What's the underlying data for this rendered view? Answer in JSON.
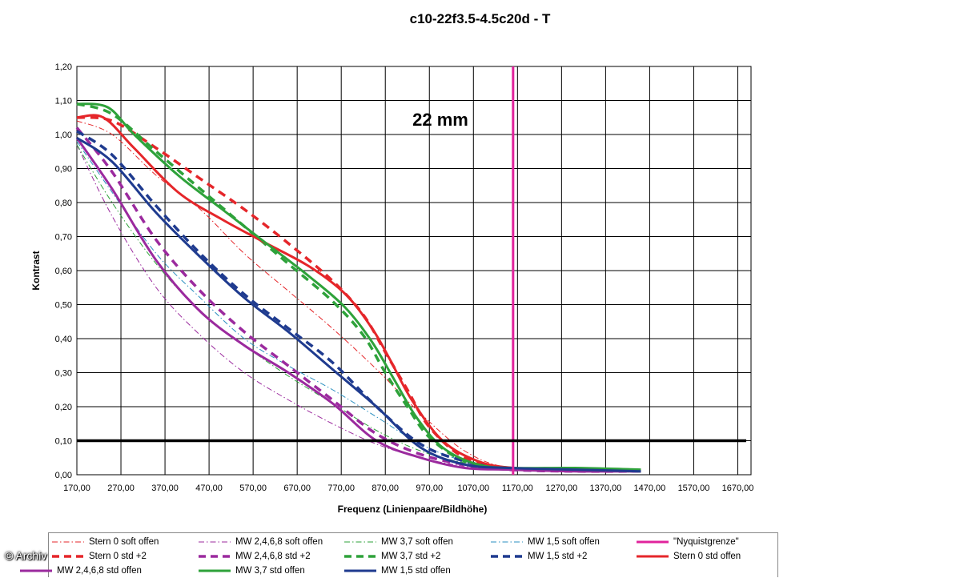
{
  "chart_data": {
    "type": "line",
    "title": "c10-22f3.5-4.5c20d - T",
    "annotation": "22 mm",
    "xlabel": "Frequenz (Linienpaare/Bildhöhe)",
    "ylabel": "Kontrast",
    "xlim": [
      170,
      1700
    ],
    "ylim": [
      0,
      1.2
    ],
    "x_ticks": [
      "170,00",
      "270,00",
      "370,00",
      "470,00",
      "570,00",
      "670,00",
      "770,00",
      "870,00",
      "970,00",
      "1070,00",
      "1170,00",
      "1270,00",
      "1370,00",
      "1470,00",
      "1570,00",
      "1670,00"
    ],
    "y_ticks": [
      "0,00",
      "0,10",
      "0,20",
      "0,30",
      "0,40",
      "0,50",
      "0,60",
      "0,70",
      "0,80",
      "0,90",
      "1,00",
      "1,10",
      "1,20"
    ],
    "grid": true,
    "reference_lines": [
      {
        "orientation": "horizontal",
        "value": 0.1,
        "color": "#000000"
      },
      {
        "orientation": "vertical",
        "value": 1160,
        "color": "#e0249c",
        "series": "\"Nyquistgrenze\""
      }
    ],
    "series": [
      {
        "name": "Stern 0 soft offen",
        "color": "#e5262a",
        "style": "dashdot",
        "width": 1,
        "x": [
          170,
          250,
          350,
          450,
          550,
          650,
          750,
          850,
          950,
          1050,
          1150,
          1300,
          1450
        ],
        "y": [
          1.04,
          1.0,
          0.88,
          0.78,
          0.65,
          0.54,
          0.43,
          0.31,
          0.18,
          0.07,
          0.02,
          0.01,
          0.01
        ]
      },
      {
        "name": "MW 2,4,6,8 soft offen",
        "color": "#9b2a9e",
        "style": "dashdot",
        "width": 1,
        "x": [
          170,
          250,
          350,
          450,
          550,
          650,
          750,
          850,
          950,
          1050,
          1150,
          1300,
          1450
        ],
        "y": [
          0.97,
          0.76,
          0.55,
          0.41,
          0.3,
          0.22,
          0.15,
          0.09,
          0.05,
          0.025,
          0.015,
          0.01,
          0.01
        ]
      },
      {
        "name": "MW 3,7 soft offen",
        "color": "#2ea23a",
        "style": "dashdot",
        "width": 1,
        "x": [
          170,
          250,
          350,
          450,
          550,
          650,
          750,
          850,
          950,
          1050,
          1150,
          1300,
          1450
        ],
        "y": [
          0.97,
          0.8,
          0.62,
          0.48,
          0.38,
          0.29,
          0.21,
          0.13,
          0.07,
          0.035,
          0.02,
          0.01,
          0.01
        ]
      },
      {
        "name": "MW 1,5 soft offen",
        "color": "#2a8fc0",
        "style": "dashdot",
        "width": 1,
        "x": [
          170,
          250,
          350,
          450,
          550,
          650,
          750,
          850,
          950,
          1050,
          1150,
          1300,
          1450
        ],
        "y": [
          0.98,
          0.83,
          0.65,
          0.52,
          0.4,
          0.32,
          0.25,
          0.17,
          0.09,
          0.04,
          0.02,
          0.01,
          0.01
        ]
      },
      {
        "name": "\"Nyquistgrenze\"",
        "color": "#e0249c",
        "style": "solid",
        "width": 3,
        "x": [
          1160,
          1160
        ],
        "y": [
          0,
          1.2
        ]
      },
      {
        "name": "Stern 0 std +2",
        "color": "#e5262a",
        "style": "dash",
        "width": 3.5,
        "x": [
          170,
          250,
          350,
          450,
          550,
          650,
          750,
          820,
          870,
          920,
          970,
          1050,
          1150,
          1300,
          1450
        ],
        "y": [
          1.05,
          1.04,
          0.96,
          0.87,
          0.78,
          0.68,
          0.57,
          0.47,
          0.36,
          0.25,
          0.14,
          0.05,
          0.02,
          0.015,
          0.01
        ]
      },
      {
        "name": "MW 2,4,6,8 std +2",
        "color": "#9b2a9e",
        "style": "dash",
        "width": 3.5,
        "x": [
          170,
          250,
          350,
          450,
          550,
          650,
          750,
          850,
          950,
          1050,
          1150,
          1300,
          1450
        ],
        "y": [
          1.02,
          0.89,
          0.69,
          0.54,
          0.42,
          0.32,
          0.22,
          0.12,
          0.06,
          0.03,
          0.015,
          0.01,
          0.01
        ]
      },
      {
        "name": "MW 3,7 std +2",
        "color": "#2ea23a",
        "style": "dash",
        "width": 3.5,
        "x": [
          170,
          250,
          350,
          450,
          550,
          650,
          750,
          820,
          870,
          920,
          970,
          1050,
          1150,
          1300,
          1450
        ],
        "y": [
          1.09,
          1.06,
          0.95,
          0.84,
          0.73,
          0.62,
          0.51,
          0.41,
          0.3,
          0.2,
          0.11,
          0.04,
          0.02,
          0.015,
          0.01
        ]
      },
      {
        "name": "MW 1,5 std +2",
        "color": "#1f3b8f",
        "style": "dash",
        "width": 3.5,
        "x": [
          170,
          250,
          350,
          450,
          550,
          650,
          750,
          850,
          950,
          1050,
          1150,
          1300,
          1450
        ],
        "y": [
          1.01,
          0.94,
          0.79,
          0.65,
          0.53,
          0.43,
          0.33,
          0.2,
          0.09,
          0.04,
          0.02,
          0.015,
          0.01
        ]
      },
      {
        "name": "Stern 0 std offen",
        "color": "#e5262a",
        "style": "solid",
        "width": 3,
        "x": [
          170,
          230,
          300,
          400,
          500,
          600,
          700,
          780,
          840,
          880,
          930,
          1000,
          1080,
          1160,
          1300,
          1450
        ],
        "y": [
          1.05,
          1.05,
          0.96,
          0.83,
          0.75,
          0.68,
          0.61,
          0.53,
          0.43,
          0.34,
          0.22,
          0.1,
          0.04,
          0.02,
          0.015,
          0.012
        ]
      },
      {
        "name": "MW 2,4,6,8 std offen",
        "color": "#9b2a9e",
        "style": "solid",
        "width": 3,
        "x": [
          170,
          250,
          350,
          450,
          550,
          650,
          750,
          850,
          950,
          1050,
          1150,
          1300,
          1450
        ],
        "y": [
          0.99,
          0.84,
          0.63,
          0.48,
          0.38,
          0.3,
          0.21,
          0.1,
          0.05,
          0.02,
          0.015,
          0.01,
          0.01
        ]
      },
      {
        "name": "MW 3,7 std offen",
        "color": "#2ea23a",
        "style": "solid",
        "width": 3,
        "x": [
          170,
          240,
          300,
          400,
          500,
          600,
          700,
          780,
          840,
          890,
          940,
          1000,
          1080,
          1160,
          1300,
          1450
        ],
        "y": [
          1.09,
          1.08,
          1.0,
          0.88,
          0.78,
          0.68,
          0.58,
          0.49,
          0.39,
          0.28,
          0.17,
          0.08,
          0.03,
          0.02,
          0.02,
          0.015
        ]
      },
      {
        "name": "MW 1,5 std offen",
        "color": "#1f3b8f",
        "style": "solid",
        "width": 3,
        "x": [
          170,
          250,
          350,
          450,
          550,
          650,
          750,
          850,
          950,
          1050,
          1150,
          1300,
          1450
        ],
        "y": [
          0.99,
          0.92,
          0.77,
          0.64,
          0.52,
          0.42,
          0.31,
          0.2,
          0.08,
          0.03,
          0.02,
          0.015,
          0.01
        ]
      }
    ],
    "legend": {
      "placement": "bottom",
      "rows": [
        [
          "Stern 0 soft offen",
          "MW 2,4,6,8 soft offen",
          "MW 3,7 soft offen",
          "MW 1,5 soft offen",
          "\"Nyquistgrenze\""
        ],
        [
          "Stern 0 std +2",
          "MW 2,4,6,8 std +2",
          "MW 3,7 std +2",
          "MW 1,5 std +2",
          "Stern 0 std offen"
        ],
        [
          "MW 2,4,6,8 std offen",
          "MW 3,7 std offen",
          "MW 1,5 std offen"
        ]
      ]
    }
  },
  "watermark": "© Archiv"
}
